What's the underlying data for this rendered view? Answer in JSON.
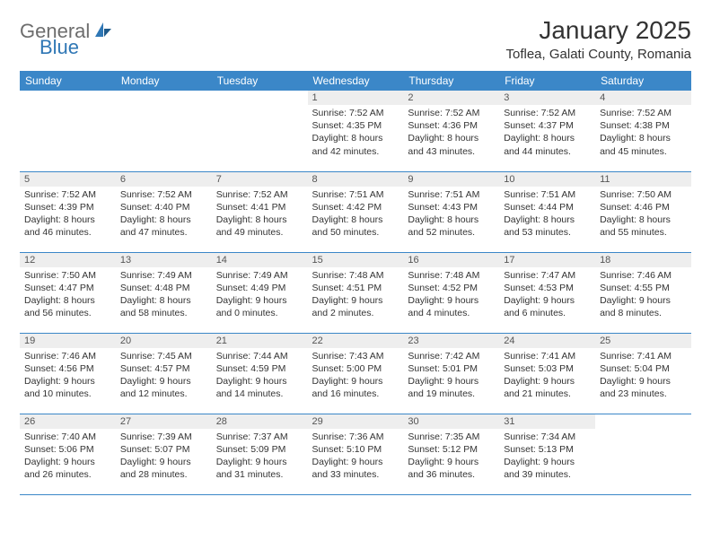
{
  "logo": {
    "part1": "General",
    "part2": "Blue"
  },
  "title": "January 2025",
  "location": "Toflea, Galati County, Romania",
  "header_bg": "#3b87c8",
  "daynum_bg": "#eeeeee",
  "border_color": "#3b87c8",
  "days_of_week": [
    "Sunday",
    "Monday",
    "Tuesday",
    "Wednesday",
    "Thursday",
    "Friday",
    "Saturday"
  ],
  "weeks": [
    [
      null,
      null,
      null,
      {
        "n": "1",
        "sr": "Sunrise: 7:52 AM",
        "ss": "Sunset: 4:35 PM",
        "d1": "Daylight: 8 hours",
        "d2": "and 42 minutes."
      },
      {
        "n": "2",
        "sr": "Sunrise: 7:52 AM",
        "ss": "Sunset: 4:36 PM",
        "d1": "Daylight: 8 hours",
        "d2": "and 43 minutes."
      },
      {
        "n": "3",
        "sr": "Sunrise: 7:52 AM",
        "ss": "Sunset: 4:37 PM",
        "d1": "Daylight: 8 hours",
        "d2": "and 44 minutes."
      },
      {
        "n": "4",
        "sr": "Sunrise: 7:52 AM",
        "ss": "Sunset: 4:38 PM",
        "d1": "Daylight: 8 hours",
        "d2": "and 45 minutes."
      }
    ],
    [
      {
        "n": "5",
        "sr": "Sunrise: 7:52 AM",
        "ss": "Sunset: 4:39 PM",
        "d1": "Daylight: 8 hours",
        "d2": "and 46 minutes."
      },
      {
        "n": "6",
        "sr": "Sunrise: 7:52 AM",
        "ss": "Sunset: 4:40 PM",
        "d1": "Daylight: 8 hours",
        "d2": "and 47 minutes."
      },
      {
        "n": "7",
        "sr": "Sunrise: 7:52 AM",
        "ss": "Sunset: 4:41 PM",
        "d1": "Daylight: 8 hours",
        "d2": "and 49 minutes."
      },
      {
        "n": "8",
        "sr": "Sunrise: 7:51 AM",
        "ss": "Sunset: 4:42 PM",
        "d1": "Daylight: 8 hours",
        "d2": "and 50 minutes."
      },
      {
        "n": "9",
        "sr": "Sunrise: 7:51 AM",
        "ss": "Sunset: 4:43 PM",
        "d1": "Daylight: 8 hours",
        "d2": "and 52 minutes."
      },
      {
        "n": "10",
        "sr": "Sunrise: 7:51 AM",
        "ss": "Sunset: 4:44 PM",
        "d1": "Daylight: 8 hours",
        "d2": "and 53 minutes."
      },
      {
        "n": "11",
        "sr": "Sunrise: 7:50 AM",
        "ss": "Sunset: 4:46 PM",
        "d1": "Daylight: 8 hours",
        "d2": "and 55 minutes."
      }
    ],
    [
      {
        "n": "12",
        "sr": "Sunrise: 7:50 AM",
        "ss": "Sunset: 4:47 PM",
        "d1": "Daylight: 8 hours",
        "d2": "and 56 minutes."
      },
      {
        "n": "13",
        "sr": "Sunrise: 7:49 AM",
        "ss": "Sunset: 4:48 PM",
        "d1": "Daylight: 8 hours",
        "d2": "and 58 minutes."
      },
      {
        "n": "14",
        "sr": "Sunrise: 7:49 AM",
        "ss": "Sunset: 4:49 PM",
        "d1": "Daylight: 9 hours",
        "d2": "and 0 minutes."
      },
      {
        "n": "15",
        "sr": "Sunrise: 7:48 AM",
        "ss": "Sunset: 4:51 PM",
        "d1": "Daylight: 9 hours",
        "d2": "and 2 minutes."
      },
      {
        "n": "16",
        "sr": "Sunrise: 7:48 AM",
        "ss": "Sunset: 4:52 PM",
        "d1": "Daylight: 9 hours",
        "d2": "and 4 minutes."
      },
      {
        "n": "17",
        "sr": "Sunrise: 7:47 AM",
        "ss": "Sunset: 4:53 PM",
        "d1": "Daylight: 9 hours",
        "d2": "and 6 minutes."
      },
      {
        "n": "18",
        "sr": "Sunrise: 7:46 AM",
        "ss": "Sunset: 4:55 PM",
        "d1": "Daylight: 9 hours",
        "d2": "and 8 minutes."
      }
    ],
    [
      {
        "n": "19",
        "sr": "Sunrise: 7:46 AM",
        "ss": "Sunset: 4:56 PM",
        "d1": "Daylight: 9 hours",
        "d2": "and 10 minutes."
      },
      {
        "n": "20",
        "sr": "Sunrise: 7:45 AM",
        "ss": "Sunset: 4:57 PM",
        "d1": "Daylight: 9 hours",
        "d2": "and 12 minutes."
      },
      {
        "n": "21",
        "sr": "Sunrise: 7:44 AM",
        "ss": "Sunset: 4:59 PM",
        "d1": "Daylight: 9 hours",
        "d2": "and 14 minutes."
      },
      {
        "n": "22",
        "sr": "Sunrise: 7:43 AM",
        "ss": "Sunset: 5:00 PM",
        "d1": "Daylight: 9 hours",
        "d2": "and 16 minutes."
      },
      {
        "n": "23",
        "sr": "Sunrise: 7:42 AM",
        "ss": "Sunset: 5:01 PM",
        "d1": "Daylight: 9 hours",
        "d2": "and 19 minutes."
      },
      {
        "n": "24",
        "sr": "Sunrise: 7:41 AM",
        "ss": "Sunset: 5:03 PM",
        "d1": "Daylight: 9 hours",
        "d2": "and 21 minutes."
      },
      {
        "n": "25",
        "sr": "Sunrise: 7:41 AM",
        "ss": "Sunset: 5:04 PM",
        "d1": "Daylight: 9 hours",
        "d2": "and 23 minutes."
      }
    ],
    [
      {
        "n": "26",
        "sr": "Sunrise: 7:40 AM",
        "ss": "Sunset: 5:06 PM",
        "d1": "Daylight: 9 hours",
        "d2": "and 26 minutes."
      },
      {
        "n": "27",
        "sr": "Sunrise: 7:39 AM",
        "ss": "Sunset: 5:07 PM",
        "d1": "Daylight: 9 hours",
        "d2": "and 28 minutes."
      },
      {
        "n": "28",
        "sr": "Sunrise: 7:37 AM",
        "ss": "Sunset: 5:09 PM",
        "d1": "Daylight: 9 hours",
        "d2": "and 31 minutes."
      },
      {
        "n": "29",
        "sr": "Sunrise: 7:36 AM",
        "ss": "Sunset: 5:10 PM",
        "d1": "Daylight: 9 hours",
        "d2": "and 33 minutes."
      },
      {
        "n": "30",
        "sr": "Sunrise: 7:35 AM",
        "ss": "Sunset: 5:12 PM",
        "d1": "Daylight: 9 hours",
        "d2": "and 36 minutes."
      },
      {
        "n": "31",
        "sr": "Sunrise: 7:34 AM",
        "ss": "Sunset: 5:13 PM",
        "d1": "Daylight: 9 hours",
        "d2": "and 39 minutes."
      },
      null
    ]
  ]
}
